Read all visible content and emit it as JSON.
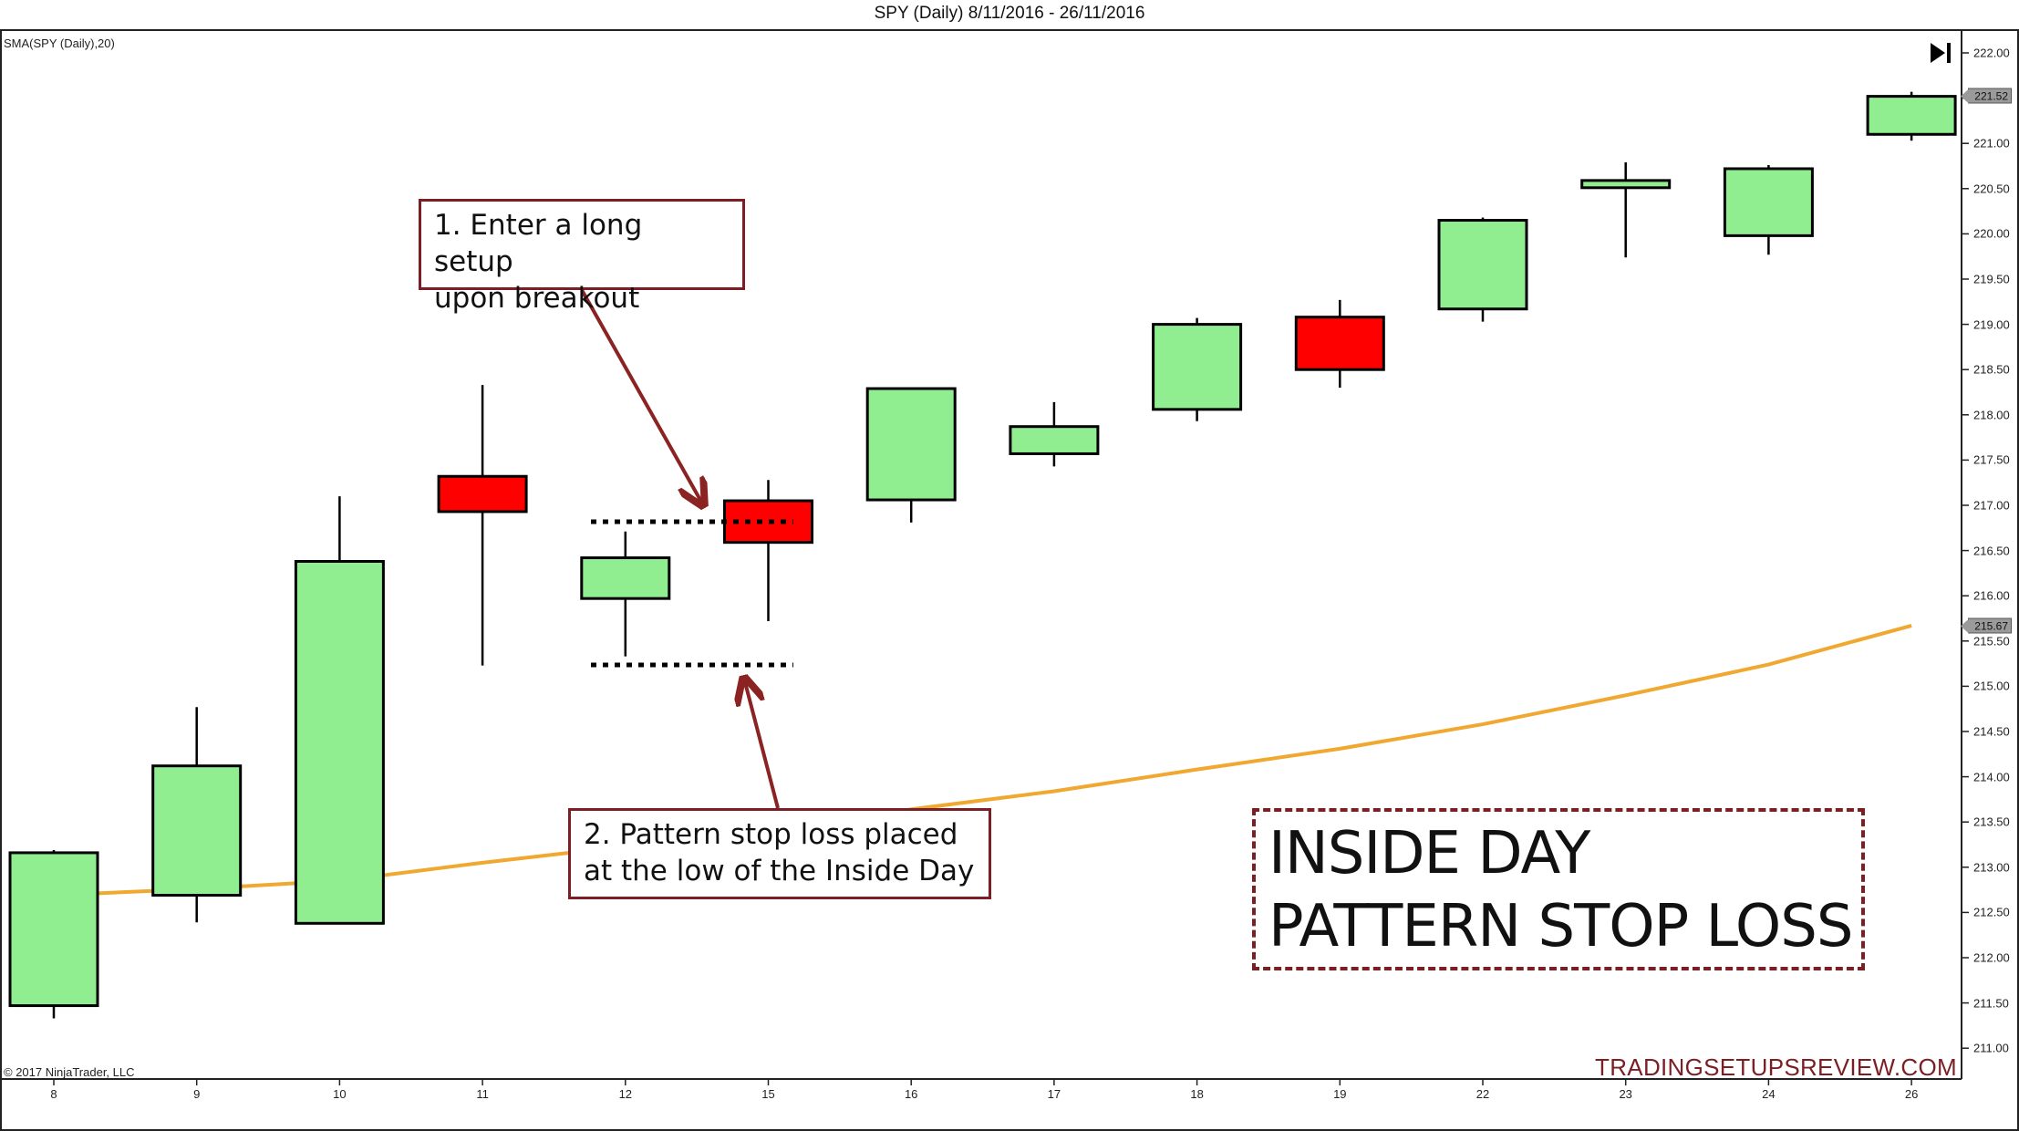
{
  "header": {
    "title": "SPY (Daily)  8/11/2016 - 26/11/2016",
    "indicator_label": "SMA(SPY (Daily),20)",
    "copyright": "© 2017 NinjaTrader, LLC",
    "watermark": "TRADINGSETUPSREVIEW.COM",
    "scroll_end_icon": "skip-to-end-icon"
  },
  "annotations": {
    "note1": {
      "line1": "1. Enter a long setup",
      "line2": "upon breakout"
    },
    "note2": {
      "line1": "2. Pattern stop loss placed",
      "line2": "at the low of the Inside Day"
    },
    "headline": {
      "line1": "INSIDE DAY",
      "line2": "PATTERN STOP LOSS"
    }
  },
  "price_flags": {
    "last_close": "221.52",
    "sma_value": "215.67"
  },
  "colors": {
    "up_candle": "#90ee90",
    "down_candle": "#ff0000",
    "candle_outline": "#000000",
    "sma_line": "#f0a830",
    "annotation": "#7b1f24"
  },
  "chart_data": {
    "type": "candlestick",
    "title": "SPY (Daily)  8/11/2016 - 26/11/2016",
    "xlabel": "",
    "ylabel": "",
    "ylim": [
      210.6,
      222.3
    ],
    "y_ticks": [
      "222.00",
      "221.50",
      "221.00",
      "220.50",
      "220.00",
      "219.50",
      "219.00",
      "218.50",
      "218.00",
      "217.50",
      "217.00",
      "216.50",
      "216.00",
      "215.50",
      "215.00",
      "214.50",
      "214.00",
      "213.50",
      "213.00",
      "212.50",
      "212.00",
      "211.50",
      "211.00"
    ],
    "categories": [
      "8",
      "9",
      "10",
      "11",
      "12",
      "15",
      "16",
      "17",
      "18",
      "19",
      "22",
      "23",
      "24",
      "26"
    ],
    "series": [
      {
        "name": "SPY",
        "type": "ohlc",
        "open": [
          211.47,
          212.69,
          212.38,
          217.32,
          215.97,
          217.05,
          217.06,
          217.57,
          218.06,
          219.08,
          219.17,
          220.51,
          219.98,
          221.1
        ],
        "high": [
          213.19,
          214.77,
          217.1,
          218.33,
          216.71,
          217.28,
          218.29,
          218.14,
          219.07,
          219.27,
          220.18,
          220.79,
          220.76,
          221.57
        ],
        "low": [
          211.33,
          212.39,
          212.38,
          215.23,
          215.33,
          215.72,
          216.81,
          217.43,
          217.93,
          218.3,
          219.03,
          219.74,
          219.77,
          221.03
        ],
        "close": [
          213.16,
          214.12,
          216.38,
          216.93,
          216.42,
          216.59,
          218.29,
          217.87,
          219.0,
          218.5,
          220.15,
          220.59,
          220.72,
          221.52
        ]
      },
      {
        "name": "SMA(SPY (Daily),20)",
        "type": "line",
        "values": [
          212.69,
          212.76,
          212.85,
          213.05,
          213.23,
          213.43,
          213.64,
          213.84,
          214.08,
          214.31,
          214.58,
          214.9,
          215.24,
          215.67
        ]
      }
    ],
    "levels": [
      {
        "name": "breakout-level (inside day high)",
        "value": 216.82,
        "style": "dotted"
      },
      {
        "name": "stop-loss-level (inside day low)",
        "value": 215.25,
        "style": "dotted"
      }
    ],
    "legend": "SMA(SPY (Daily),20) top-left",
    "grid": false
  }
}
